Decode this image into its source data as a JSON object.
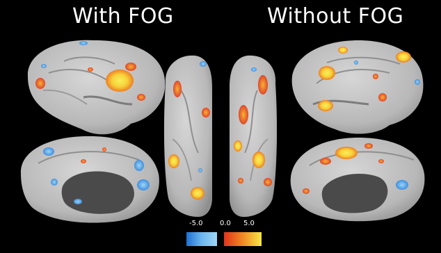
{
  "titles": {
    "left": "With FOG",
    "right": "Without FOG"
  },
  "colorbar": {
    "min_label": "-5.0",
    "mid_label": "0.0",
    "max_label": "5.0",
    "cool_colors": [
      "#1f6fd1",
      "#6db8ee",
      "#9fd5f3"
    ],
    "hot_colors": [
      "#e2321a",
      "#f08a23",
      "#f8e64a"
    ]
  },
  "colors": {
    "background": "#000000",
    "cortex": "#bdbdbd",
    "medial_wall": "#4a4a4a"
  }
}
